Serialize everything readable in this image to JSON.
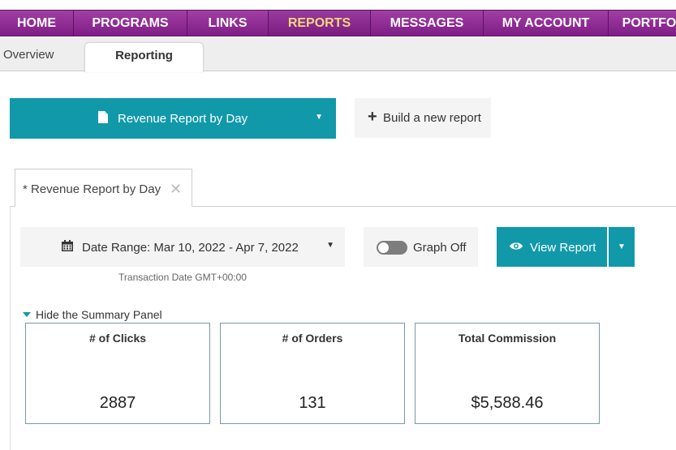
{
  "topnav": {
    "items": [
      {
        "label": "HOME"
      },
      {
        "label": "PROGRAMS"
      },
      {
        "label": "LINKS"
      },
      {
        "label": "REPORTS"
      },
      {
        "label": "MESSAGES"
      },
      {
        "label": "MY ACCOUNT"
      },
      {
        "label": "PORTFO"
      }
    ],
    "active": "REPORTS",
    "active_color": "#f3d87a"
  },
  "subtabs": {
    "overview": "Overview",
    "reporting": "Reporting"
  },
  "report_selector": {
    "label": "Revenue Report by Day",
    "icon": "document-icon"
  },
  "build_button": {
    "label": "Build a new report",
    "icon": "plus-icon"
  },
  "report_tab": {
    "label": "* Revenue Report by Day",
    "close": "✕"
  },
  "date_range": {
    "label": "Date Range: Mar 10, 2022 - Apr 7, 2022",
    "note": "Transaction Date GMT+00:00",
    "icon": "calendar-icon"
  },
  "graph_toggle": {
    "label": "Graph Off",
    "on": false
  },
  "view_report": {
    "label": "View Report",
    "icon": "eye-icon"
  },
  "summary": {
    "toggle_label": "Hide the Summary Panel",
    "cards": [
      {
        "title": "# of Clicks",
        "value": "2887"
      },
      {
        "title": "# of Orders",
        "value": "131"
      },
      {
        "title": "Total Commission",
        "value": "$5,588.46"
      }
    ]
  },
  "colors": {
    "accent": "#1199aa",
    "nav_purple": "#8c2b92"
  }
}
